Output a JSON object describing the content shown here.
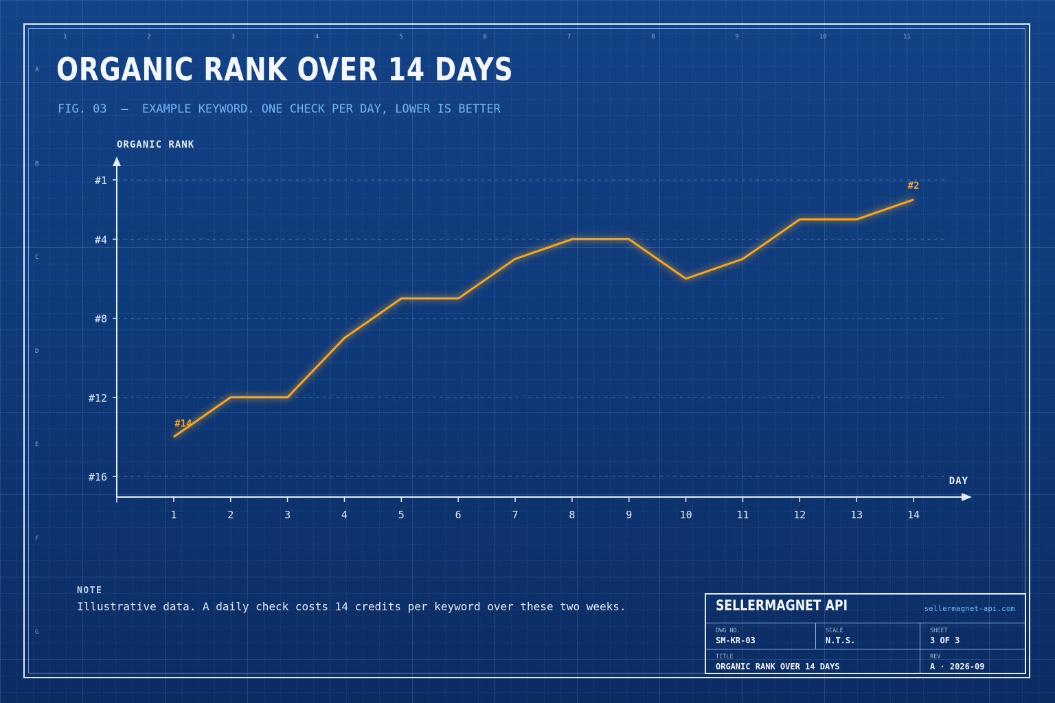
{
  "sheet_ruler": {
    "columns": [
      "1",
      "2",
      "3",
      "4",
      "5",
      "6",
      "7",
      "8",
      "9",
      "10",
      "11"
    ],
    "rows": [
      "A",
      "B",
      "C",
      "D",
      "E",
      "F",
      "G"
    ]
  },
  "header": {
    "title": "ORGANIC RANK OVER 14 DAYS",
    "subtitle": "FIG. 03  —  EXAMPLE KEYWORD. ONE CHECK PER DAY, LOWER IS BETTER"
  },
  "chart_data": {
    "type": "line",
    "xlabel": "DAY",
    "ylabel": "ORGANIC RANK",
    "x": [
      1,
      2,
      3,
      4,
      5,
      6,
      7,
      8,
      9,
      10,
      11,
      12,
      13,
      14
    ],
    "series": [
      {
        "values": [
          14,
          12,
          12,
          9,
          7,
          7,
          5,
          4,
          4,
          6,
          5,
          3,
          3,
          2
        ]
      }
    ],
    "y_ticks": [
      1,
      4,
      8,
      12,
      16
    ],
    "y_tick_labels": [
      "#1",
      "#4",
      "#8",
      "#12",
      "#16"
    ],
    "ylim": [
      17,
      1
    ],
    "y_inverted": true,
    "annotations": [
      {
        "x": 1,
        "label": "#14"
      },
      {
        "x": 14,
        "label": "#2"
      }
    ],
    "line_color": "#f5a623",
    "axis_color": "#e6eefb",
    "grid": "dashed horizontal"
  },
  "note": {
    "heading": "NOTE",
    "text": "Illustrative data. A daily check costs 14 credits per keyword over these two weeks."
  },
  "title_block": {
    "brand": "SELLERMAGNET API",
    "url": "sellermagnet-api.com",
    "dwg_no_label": "DWG NO.",
    "dwg_no": "SM-KR-03",
    "scale_label": "SCALE",
    "scale": "N.T.S.",
    "sheet_label": "SHEET",
    "sheet": "3 OF 3",
    "title_label": "TITLE",
    "title": "ORGANIC RANK OVER 14 DAYS",
    "rev_label": "REV",
    "rev": "A · 2026-09"
  },
  "colors": {
    "background": "#0f3a7a",
    "accent": "#f5a623",
    "subtitle": "#71b4f4"
  }
}
